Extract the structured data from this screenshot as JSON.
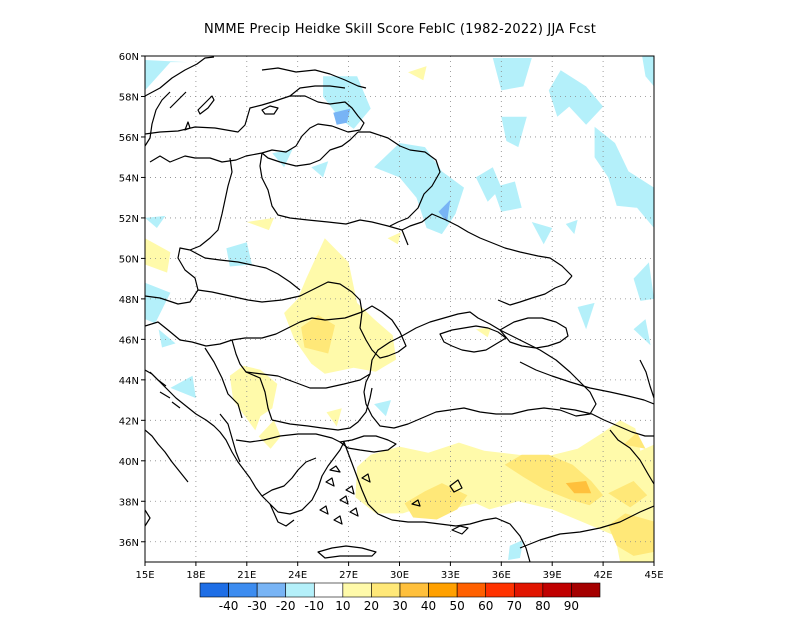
{
  "title": "NMME Precip Heidke Skill Score FebIC (1982-2022) JJA Fcst",
  "map": {
    "lon_range": [
      15,
      45
    ],
    "lat_range": [
      35,
      60
    ],
    "x_ticks": [
      "15E",
      "18E",
      "21E",
      "24E",
      "27E",
      "30E",
      "33E",
      "36E",
      "39E",
      "42E",
      "45E"
    ],
    "y_ticks": [
      "36N",
      "38N",
      "40N",
      "42N",
      "44N",
      "46N",
      "48N",
      "50N",
      "52N",
      "54N",
      "56N",
      "58N",
      "60N"
    ],
    "grid": "dotted",
    "coastline_color": "#000000"
  },
  "colorbar": {
    "colors": [
      "#1e6ee6",
      "#3c8cf0",
      "#78b4f5",
      "#b4f0fa",
      "#ffffff",
      "#fffaaa",
      "#ffe878",
      "#ffc03c",
      "#ffa000",
      "#ff6000",
      "#ff3200",
      "#e11400",
      "#c00000",
      "#a50000"
    ],
    "labels": [
      "-40",
      "-30",
      "-20",
      "-10",
      "10",
      "20",
      "30",
      "40",
      "50",
      "60",
      "70",
      "80",
      "90"
    ]
  },
  "regions": [
    {
      "level": "-10",
      "color": "#b4f0fa",
      "points": [
        [
          15,
          58.3
        ],
        [
          16.5,
          59.7
        ],
        [
          17.5,
          59.7
        ],
        [
          15,
          59.8
        ]
      ]
    },
    {
      "level": "-10",
      "color": "#b4f0fa",
      "points": [
        [
          25.5,
          59
        ],
        [
          27.5,
          59
        ],
        [
          28.3,
          57.4
        ],
        [
          27.3,
          56.4
        ],
        [
          26.5,
          56.9
        ],
        [
          25.5,
          58
        ]
      ]
    },
    {
      "level": "-20",
      "color": "#78b4f5",
      "points": [
        [
          26.1,
          57.2
        ],
        [
          27.1,
          57.4
        ],
        [
          26.9,
          56.7
        ],
        [
          26.3,
          56.6
        ]
      ]
    },
    {
      "level": "-10",
      "color": "#b4f0fa",
      "points": [
        [
          28.5,
          54.5
        ],
        [
          30,
          55.7
        ],
        [
          31.5,
          55.5
        ],
        [
          32.5,
          54.3
        ],
        [
          33.8,
          53.5
        ],
        [
          33.3,
          52.2
        ],
        [
          32.5,
          51.2
        ],
        [
          31.6,
          51.5
        ],
        [
          31,
          53
        ],
        [
          30,
          54
        ]
      ]
    },
    {
      "level": "-20",
      "color": "#78b4f5",
      "points": [
        [
          32.3,
          52.3
        ],
        [
          33,
          52.9
        ],
        [
          32.8,
          51.8
        ]
      ]
    },
    {
      "level": "-10",
      "color": "#b4f0fa",
      "points": [
        [
          34.5,
          54
        ],
        [
          35.5,
          54.5
        ],
        [
          36,
          53.5
        ],
        [
          35.2,
          52.8
        ]
      ]
    },
    {
      "level": "-10",
      "color": "#b4f0fa",
      "points": [
        [
          35.5,
          53.5
        ],
        [
          36.8,
          53.8
        ],
        [
          37.2,
          52.5
        ],
        [
          36,
          52.3
        ]
      ]
    },
    {
      "level": "-10",
      "color": "#b4f0fa",
      "points": [
        [
          36,
          57
        ],
        [
          37.5,
          57
        ],
        [
          37,
          55.5
        ],
        [
          36.3,
          55.8
        ]
      ]
    },
    {
      "level": "-10",
      "color": "#b4f0fa",
      "points": [
        [
          35.5,
          59.9
        ],
        [
          37.8,
          59.9
        ],
        [
          37.3,
          58.5
        ],
        [
          36,
          58.3
        ]
      ]
    },
    {
      "level": "-10",
      "color": "#b4f0fa",
      "points": [
        [
          38.8,
          58.3
        ],
        [
          39.5,
          59.3
        ],
        [
          41,
          58.5
        ],
        [
          42,
          57.5
        ],
        [
          41,
          56.6
        ],
        [
          40,
          57.5
        ],
        [
          39.3,
          57
        ]
      ]
    },
    {
      "level": "-10",
      "color": "#b4f0fa",
      "points": [
        [
          41.5,
          56.5
        ],
        [
          42.7,
          55.7
        ],
        [
          43.5,
          54.3
        ],
        [
          45,
          53.5
        ],
        [
          45,
          51.5
        ],
        [
          44,
          52.5
        ],
        [
          42.8,
          52.6
        ],
        [
          42.3,
          54
        ],
        [
          41.5,
          55
        ]
      ]
    },
    {
      "level": "-10",
      "color": "#b4f0fa",
      "points": [
        [
          44.3,
          60
        ],
        [
          45,
          60
        ],
        [
          45,
          58.5
        ],
        [
          44.5,
          59
        ]
      ]
    },
    {
      "level": "-10",
      "color": "#b4f0fa",
      "points": [
        [
          37.8,
          51.8
        ],
        [
          39,
          51.5
        ],
        [
          38.5,
          50.7
        ]
      ]
    },
    {
      "level": "-10",
      "color": "#b4f0fa",
      "points": [
        [
          39.8,
          51.7
        ],
        [
          40.5,
          51.9
        ],
        [
          40.3,
          51.2
        ]
      ]
    },
    {
      "level": "-10",
      "color": "#b4f0fa",
      "points": [
        [
          19.8,
          50.5
        ],
        [
          21,
          50.8
        ],
        [
          21.3,
          49.7
        ],
        [
          20,
          49.6
        ]
      ]
    },
    {
      "level": "-10",
      "color": "#b4f0fa",
      "points": [
        [
          15,
          52
        ],
        [
          16.2,
          52.1
        ],
        [
          15.7,
          51.5
        ]
      ]
    },
    {
      "level": "-10",
      "color": "#b4f0fa",
      "points": [
        [
          22.5,
          55.2
        ],
        [
          23.7,
          55.4
        ],
        [
          23.2,
          54.5
        ]
      ]
    },
    {
      "level": "-10",
      "color": "#b4f0fa",
      "points": [
        [
          24.8,
          54.5
        ],
        [
          25.8,
          54.8
        ],
        [
          25.5,
          54
        ]
      ]
    },
    {
      "level": "-10",
      "color": "#b4f0fa",
      "points": [
        [
          15,
          48.8
        ],
        [
          16.5,
          48.3
        ],
        [
          15.6,
          46.8
        ],
        [
          15,
          47
        ]
      ]
    },
    {
      "level": "-10",
      "color": "#b4f0fa",
      "points": [
        [
          40.5,
          47.6
        ],
        [
          41.5,
          47.8
        ],
        [
          41,
          46.5
        ]
      ]
    },
    {
      "level": "-10",
      "color": "#b4f0fa",
      "points": [
        [
          43.8,
          49
        ],
        [
          44.7,
          49.8
        ],
        [
          45,
          48
        ],
        [
          44.2,
          47.9
        ]
      ]
    },
    {
      "level": "-10",
      "color": "#b4f0fa",
      "points": [
        [
          43.8,
          46.5
        ],
        [
          44.5,
          47
        ],
        [
          44.8,
          45.7
        ]
      ]
    },
    {
      "level": "-10",
      "color": "#b4f0fa",
      "points": [
        [
          15.8,
          46.5
        ],
        [
          16.8,
          45.8
        ],
        [
          16,
          45.6
        ]
      ]
    },
    {
      "level": "-10",
      "color": "#b4f0fa",
      "points": [
        [
          16.5,
          43.6
        ],
        [
          17.8,
          44.2
        ],
        [
          18,
          43.1
        ]
      ]
    },
    {
      "level": "-10",
      "color": "#b4f0fa",
      "points": [
        [
          28.5,
          42.8
        ],
        [
          29.5,
          43
        ],
        [
          29.2,
          42.2
        ]
      ]
    },
    {
      "level": "-10",
      "color": "#b4f0fa",
      "points": [
        [
          36.5,
          35.8
        ],
        [
          37.3,
          36.1
        ],
        [
          37.1,
          35.2
        ],
        [
          36.4,
          35.1
        ]
      ]
    },
    {
      "level": "10",
      "color": "#fffaaa",
      "points": [
        [
          15,
          51
        ],
        [
          16.5,
          50.3
        ],
        [
          16.3,
          49.3
        ],
        [
          15,
          49.7
        ]
      ]
    },
    {
      "level": "10",
      "color": "#fffaaa",
      "points": [
        [
          24,
          48
        ],
        [
          24.5,
          49
        ],
        [
          25.6,
          51
        ],
        [
          27,
          49.8
        ],
        [
          27.5,
          47.8
        ],
        [
          28.5,
          47
        ],
        [
          29.6,
          46.2
        ],
        [
          29.8,
          45
        ],
        [
          28.6,
          44.4
        ],
        [
          27.3,
          44.6
        ],
        [
          25.6,
          44.3
        ],
        [
          24.8,
          44.8
        ],
        [
          23.8,
          46
        ],
        [
          23.2,
          47.3
        ]
      ]
    },
    {
      "level": "20",
      "color": "#ffe878",
      "points": [
        [
          24.2,
          46.6
        ],
        [
          25.2,
          47.2
        ],
        [
          26.2,
          46.7
        ],
        [
          25.8,
          45.3
        ],
        [
          24.4,
          45.6
        ]
      ]
    },
    {
      "level": "10",
      "color": "#fffaaa",
      "points": [
        [
          20,
          44.2
        ],
        [
          20.2,
          43
        ],
        [
          21.5,
          41.5
        ],
        [
          21.8,
          42.2
        ],
        [
          22.5,
          42.6
        ],
        [
          22.8,
          43.8
        ],
        [
          21.8,
          44.5
        ],
        [
          20.8,
          44.7
        ]
      ]
    },
    {
      "level": "10",
      "color": "#fffaaa",
      "points": [
        [
          21.7,
          41.2
        ],
        [
          22.6,
          42
        ],
        [
          23,
          41.2
        ],
        [
          22.4,
          40.6
        ]
      ]
    },
    {
      "level": "10",
      "color": "#fffaaa",
      "points": [
        [
          25.7,
          42.4
        ],
        [
          26.6,
          42.6
        ],
        [
          26.3,
          41.7
        ]
      ]
    },
    {
      "level": "10",
      "color": "#fffaaa",
      "points": [
        [
          27.5,
          39.7
        ],
        [
          28.3,
          40.3
        ],
        [
          30,
          40.7
        ],
        [
          31.7,
          40.4
        ],
        [
          33.5,
          40.9
        ],
        [
          35,
          40.5
        ],
        [
          37,
          40.3
        ],
        [
          38.6,
          40.2
        ],
        [
          40.5,
          40.6
        ],
        [
          42,
          41.4
        ],
        [
          43,
          42
        ],
        [
          43.9,
          41.6
        ],
        [
          44.2,
          40.5
        ],
        [
          45,
          40.8
        ],
        [
          45,
          35
        ],
        [
          43,
          35
        ],
        [
          42.7,
          36.3
        ],
        [
          41,
          36.9
        ],
        [
          39,
          37.6
        ],
        [
          37,
          38
        ],
        [
          35.3,
          37.6
        ],
        [
          34.5,
          37.9
        ],
        [
          33,
          37.6
        ],
        [
          31.6,
          37.8
        ],
        [
          30.2,
          37.4
        ],
        [
          28.6,
          37.4
        ],
        [
          27.4,
          38.2
        ]
      ]
    },
    {
      "level": "20",
      "color": "#ffe878",
      "points": [
        [
          30.3,
          37.9
        ],
        [
          31.5,
          38.5
        ],
        [
          32.5,
          38.9
        ],
        [
          34,
          38.3
        ],
        [
          33.4,
          37.6
        ],
        [
          32.2,
          37.1
        ],
        [
          30.8,
          37.2
        ]
      ]
    },
    {
      "level": "20",
      "color": "#ffe878",
      "points": [
        [
          36.2,
          39.8
        ],
        [
          37.2,
          40.3
        ],
        [
          38.8,
          40.3
        ],
        [
          40.2,
          39.8
        ],
        [
          41.3,
          39
        ],
        [
          42,
          38.3
        ],
        [
          41.2,
          37.8
        ],
        [
          40,
          38.1
        ],
        [
          38.5,
          38.6
        ],
        [
          37.3,
          39.2
        ]
      ]
    },
    {
      "level": "30",
      "color": "#ffc03c",
      "points": [
        [
          39.8,
          38.9
        ],
        [
          41,
          39
        ],
        [
          41.3,
          38.4
        ],
        [
          40.3,
          38.4
        ]
      ]
    },
    {
      "level": "20",
      "color": "#ffe878",
      "points": [
        [
          42.3,
          38.4
        ],
        [
          43.8,
          39
        ],
        [
          44.6,
          38.3
        ],
        [
          43.6,
          37.7
        ]
      ]
    },
    {
      "level": "20",
      "color": "#ffe878",
      "points": [
        [
          43.2,
          40.8
        ],
        [
          44,
          41.4
        ],
        [
          44.5,
          40.6
        ]
      ]
    },
    {
      "level": "20",
      "color": "#ffe878",
      "points": [
        [
          42.3,
          36.8
        ],
        [
          43.3,
          37.4
        ],
        [
          45,
          37
        ],
        [
          45,
          35.5
        ],
        [
          43.8,
          35.3
        ],
        [
          42.8,
          35.8
        ]
      ]
    },
    {
      "level": "10",
      "color": "#fffaaa",
      "points": [
        [
          21,
          51.8
        ],
        [
          22.6,
          52
        ],
        [
          22.3,
          51.4
        ]
      ]
    },
    {
      "level": "10",
      "color": "#fffaaa",
      "points": [
        [
          29.3,
          51
        ],
        [
          30.1,
          51.3
        ],
        [
          29.9,
          50.7
        ]
      ]
    },
    {
      "level": "10",
      "color": "#fffaaa",
      "points": [
        [
          34.5,
          46.5
        ],
        [
          35.4,
          46.6
        ],
        [
          35.2,
          46.1
        ]
      ]
    },
    {
      "level": "10",
      "color": "#fffaaa",
      "points": [
        [
          30.5,
          59.2
        ],
        [
          31.6,
          59.5
        ],
        [
          31.4,
          58.8
        ]
      ]
    }
  ]
}
